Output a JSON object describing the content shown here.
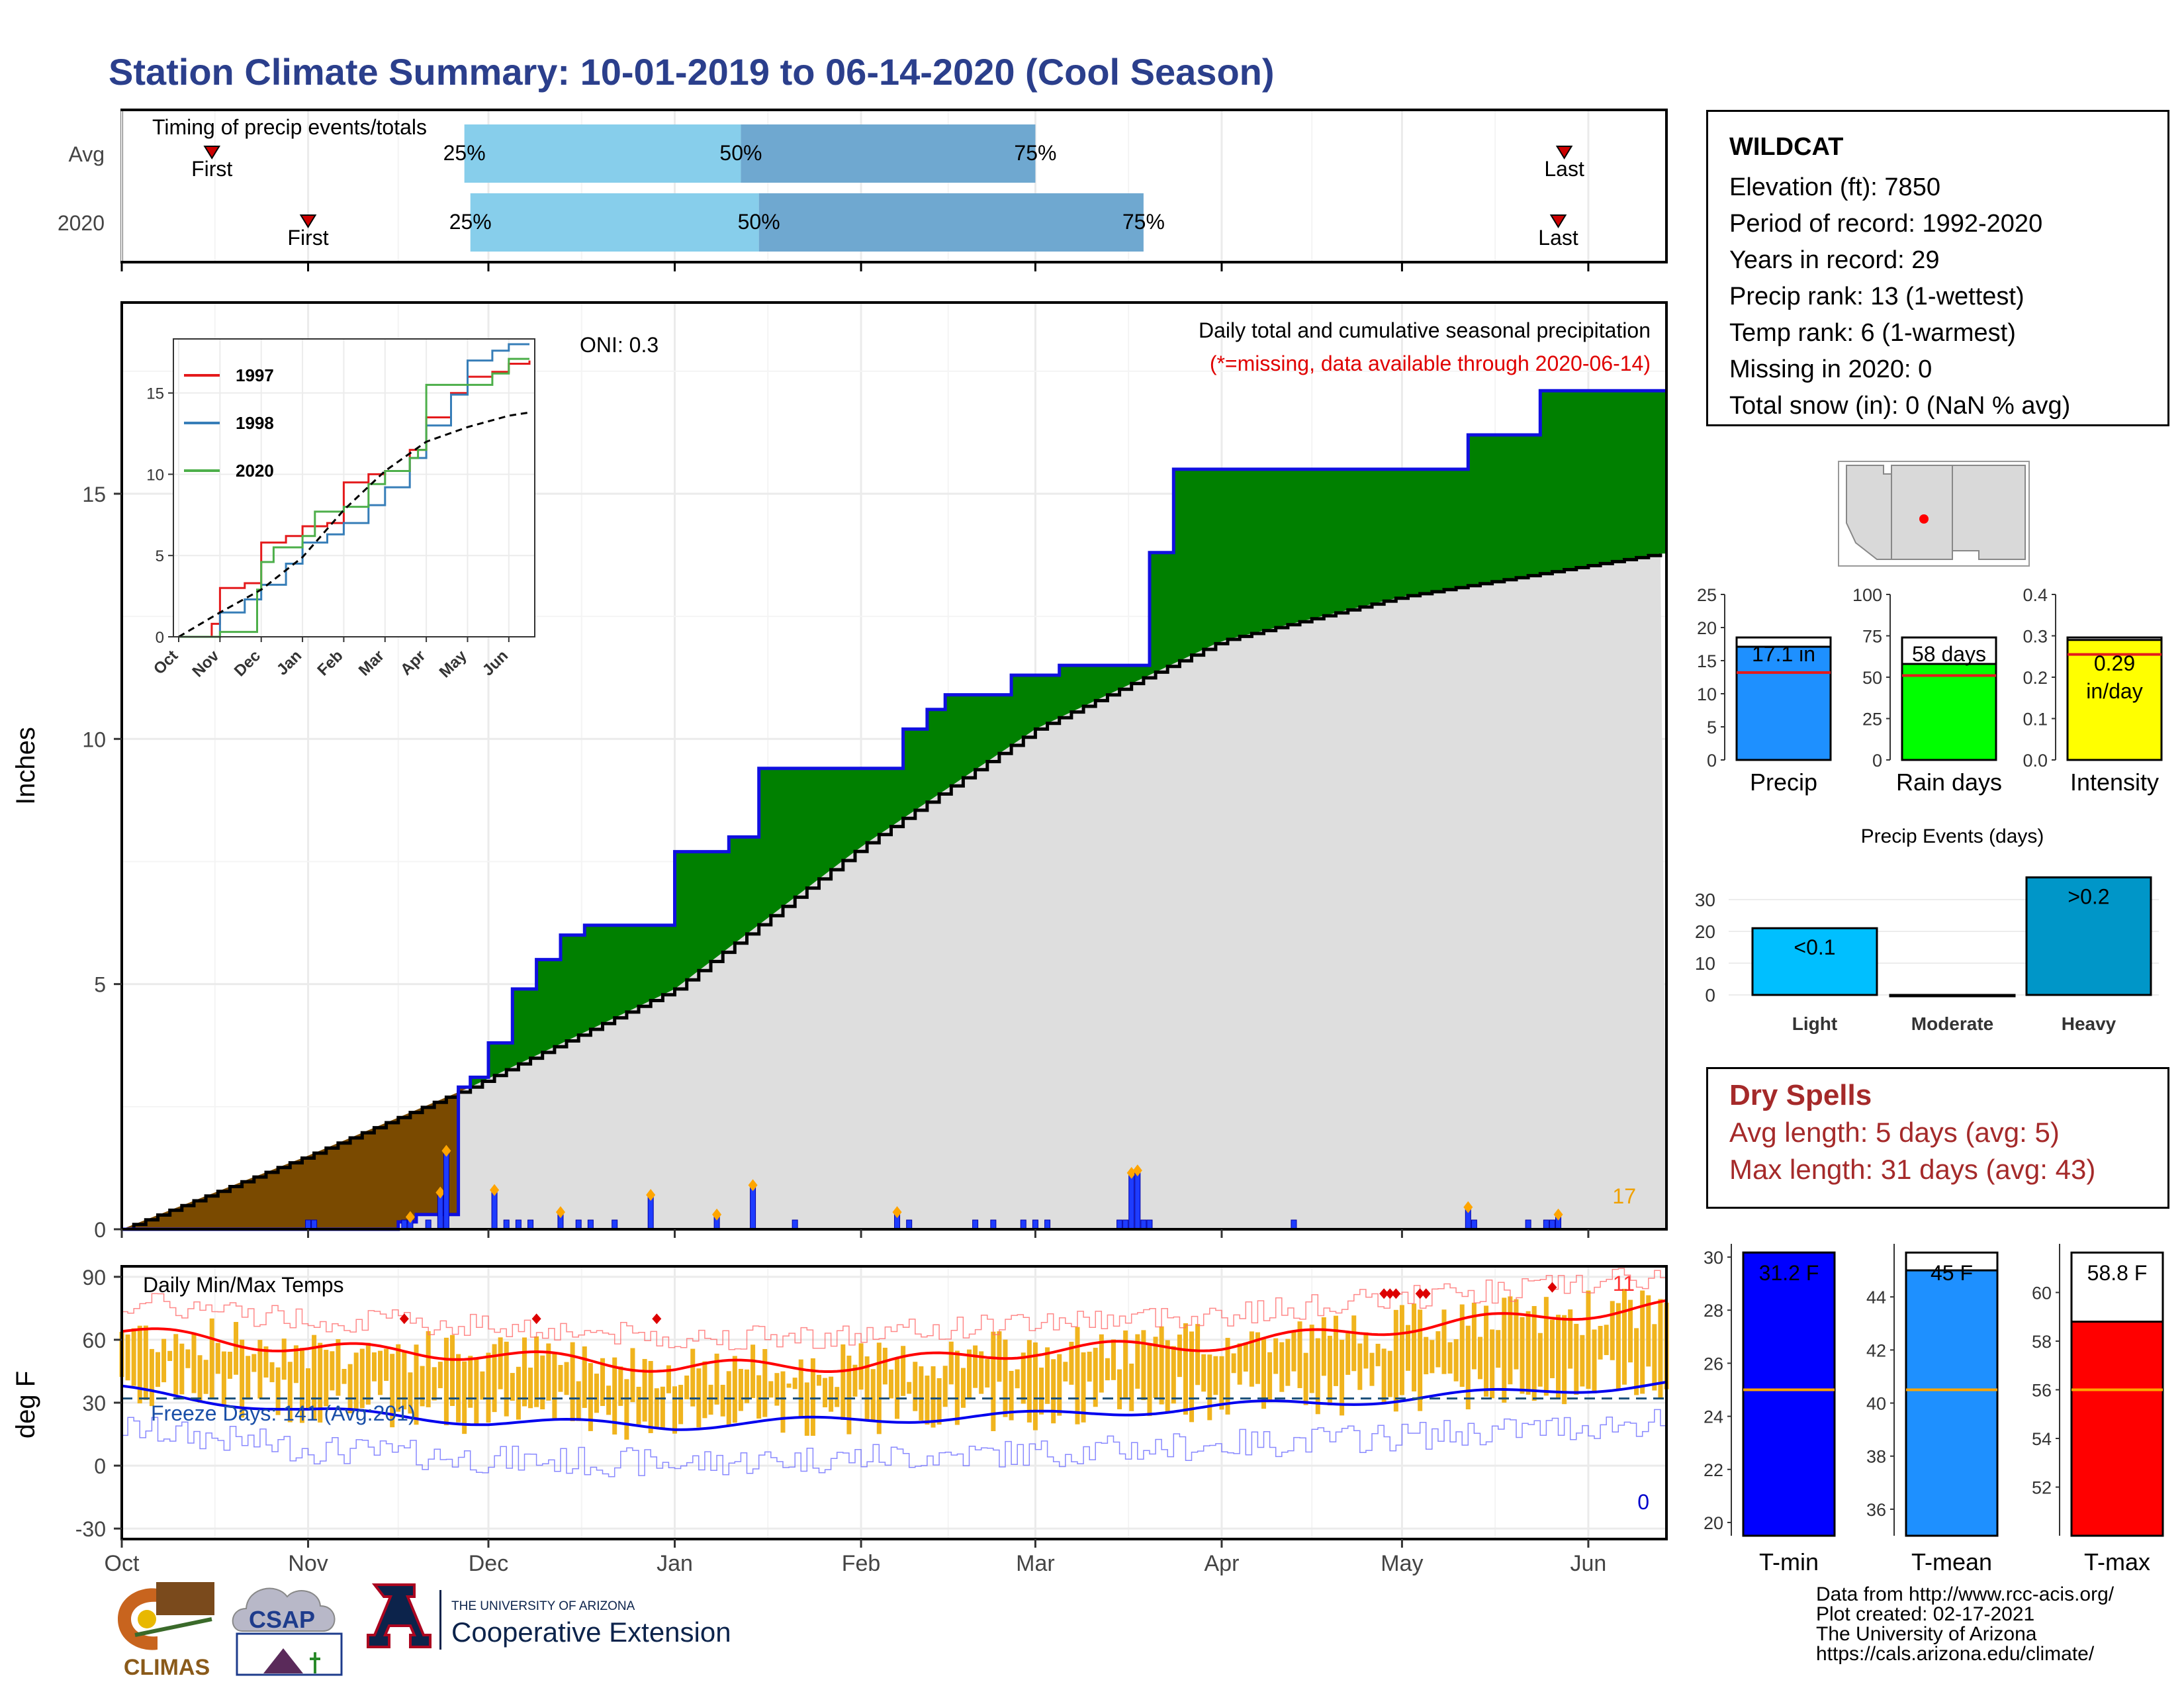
{
  "title": "Station Climate Summary: 10-01-2019 to 06-14-2020 (Cool Season)",
  "timing": {
    "label": "Timing of precip events/totals",
    "rows": [
      {
        "name": "Avg",
        "first": "2019-10-16",
        "q25": "2019-11-27",
        "q50": "2020-01-12",
        "q75": "2020-03-01",
        "last": "2020-05-28"
      },
      {
        "name": "2020",
        "first": "2019-11-01",
        "q25": "2019-11-28",
        "q50": "2020-01-15",
        "q75": "2020-03-19",
        "last": "2020-05-27"
      }
    ],
    "first_label": "First",
    "last_label": "Last",
    "q25_label": "25%",
    "q50_label": "50%",
    "q75_label": "75%"
  },
  "precip_panel": {
    "ylabel": "Inches",
    "header": "Daily total and cumulative seasonal precipitation",
    "missing_note": "(*=missing, data available through 2020-06-14)",
    "oni": "ONI: 0.3",
    "corner_count": "17",
    "yticks": [
      "0",
      "5",
      "10",
      "15"
    ]
  },
  "temp_panel": {
    "ylabel": "deg F",
    "header": "Daily Min/Max Temps",
    "freeze": "Freeze Days: 141 (Avg:201)",
    "corner_hi": "11",
    "corner_lo": "0",
    "yticks": [
      "90",
      "60",
      "30",
      "0",
      "-30"
    ]
  },
  "x_months": [
    "Oct",
    "Nov",
    "Dec",
    "Jan",
    "Feb",
    "Mar",
    "Apr",
    "May",
    "Jun"
  ],
  "inset": {
    "legend": [
      "1997",
      "1998",
      "2020"
    ],
    "yticks": [
      "0",
      "5",
      "10",
      "15"
    ],
    "xticks": [
      "Oct",
      "Nov",
      "Dec",
      "Jan",
      "Feb",
      "Mar",
      "Apr",
      "May",
      "Jun"
    ]
  },
  "station": {
    "name": "WILDCAT",
    "lines": [
      "Elevation (ft): 7850",
      "Period of record: 1992-2020",
      "Years in record: 29",
      "Precip rank: 13 (1-wettest)",
      "Temp rank: 6 (1-warmest)",
      "Missing in 2020: 0",
      "Total snow (in): 0 (NaN % avg)"
    ]
  },
  "summary_bars": [
    {
      "label": "Precip",
      "value_text": "17.1 in",
      "value": 17.1,
      "avg": 13.2,
      "max": 25,
      "ticks": [
        "0",
        "5",
        "10",
        "15",
        "20",
        "25"
      ],
      "color": "#1e90ff"
    },
    {
      "label": "Rain days",
      "value_text": "58 days",
      "value": 58,
      "avg": 51,
      "max": 100,
      "ticks": [
        "0",
        "25",
        "50",
        "75",
        "100"
      ],
      "color": "#00ff00"
    },
    {
      "label": "Intensity",
      "value_text": "0.29 in/day",
      "value": 0.29,
      "avg": 0.255,
      "max": 0.4,
      "ticks": [
        "0.0",
        "0.1",
        "0.2",
        "0.3",
        "0.4"
      ],
      "color": "#ffff00"
    }
  ],
  "events": {
    "title": "Precip Events (days)",
    "yticks": [
      "0",
      "10",
      "20",
      "30"
    ],
    "bars": [
      {
        "label": "Light",
        "value": 21,
        "text": "<0.1",
        "color": "#00bfff"
      },
      {
        "label": "Moderate",
        "value": 0,
        "text": "",
        "color": "#1e90ff"
      },
      {
        "label": "Heavy",
        "value": 37,
        "text": ">0.2",
        "color": "#0096c8"
      }
    ]
  },
  "dry_spells": {
    "title": "Dry Spells",
    "avg": "Avg length: 5 days (avg: 5)",
    "max": "Max length: 31 days (avg: 43)"
  },
  "temp_bars": [
    {
      "label": "T-min",
      "value_text": "31.2 F",
      "value": 31.2,
      "avg": 25,
      "lo": 19.5,
      "hi": 30.5,
      "ticks": [
        20,
        22,
        24,
        26,
        28,
        30
      ],
      "color": "#0000ff"
    },
    {
      "label": "T-mean",
      "value_text": "45 F",
      "value": 45,
      "avg": 40.5,
      "lo": 35,
      "hi": 46,
      "ticks": [
        36,
        38,
        40,
        42,
        44
      ],
      "color": "#1e90ff"
    },
    {
      "label": "T-max",
      "value_text": "58.8 F",
      "value": 58.8,
      "avg": 56,
      "lo": 50,
      "hi": 62,
      "ticks": [
        52,
        54,
        56,
        58,
        60
      ],
      "color": "#ff0000"
    }
  ],
  "credits": [
    "Data from http://www.rcc-acis.org/",
    "Plot created: 02-17-2021",
    "The University of Arizona",
    "https://cals.arizona.edu/climate/"
  ],
  "logos": {
    "climas": "CLIMAS",
    "csap": "CSAP",
    "ua_top": "THE UNIVERSITY OF ARIZONA",
    "ua_bottom": "Cooperative Extension"
  },
  "chart_data": [
    {
      "type": "area",
      "title": "Daily total and cumulative seasonal precipitation",
      "ylabel": "Inches",
      "ylim": [
        0,
        18.9
      ],
      "x_range": [
        "2019-10-01",
        "2020-06-14"
      ],
      "series": [
        {
          "name": "2020",
          "x": [
            "2019-10-01",
            "2019-11-16",
            "2019-11-19",
            "2019-11-26",
            "2019-11-28",
            "2019-12-01",
            "2019-12-05",
            "2019-12-09",
            "2019-12-13",
            "2019-12-17",
            "2020-01-01",
            "2020-01-10",
            "2020-01-15",
            "2020-02-08",
            "2020-02-12",
            "2020-02-15",
            "2020-02-26",
            "2020-03-05",
            "2020-03-17",
            "2020-03-20",
            "2020-03-24",
            "2020-04-01",
            "2020-05-01",
            "2020-05-12",
            "2020-05-24",
            "2020-06-14"
          ],
          "y": [
            0,
            0.15,
            0.3,
            2.9,
            3.1,
            3.8,
            4.9,
            5.5,
            6.0,
            6.2,
            7.7,
            8.0,
            9.4,
            10.2,
            10.6,
            10.9,
            11.3,
            11.5,
            11.5,
            13.8,
            15.5,
            15.5,
            15.5,
            16.2,
            17.1,
            17.1
          ]
        },
        {
          "name": "Avg",
          "x": [
            "2019-10-01",
            "2019-11-01",
            "2019-11-28",
            "2020-01-01",
            "2020-02-01",
            "2020-03-01",
            "2020-04-01",
            "2020-05-01",
            "2020-06-14"
          ],
          "y": [
            0,
            1.5,
            2.9,
            4.9,
            7.8,
            10.2,
            12.0,
            12.9,
            13.8
          ]
        }
      ],
      "daily": {
        "x": [
          "2019-11-18",
          "2019-11-23",
          "2019-11-24",
          "2019-12-02",
          "2019-12-13",
          "2019-12-28",
          "2020-01-08",
          "2020-01-14",
          "2020-02-07",
          "2020-03-17",
          "2020-03-18",
          "2020-05-12",
          "2020-05-27"
        ],
        "y": [
          0.25,
          0.75,
          1.6,
          0.8,
          0.35,
          0.7,
          0.3,
          0.9,
          0.35,
          1.15,
          1.2,
          0.45,
          0.3
        ]
      }
    },
    {
      "type": "line",
      "title": "Daily Min/Max Temps",
      "ylabel": "deg F",
      "ylim": [
        -35,
        95
      ],
      "series": [
        {
          "name": "Tmax smooth",
          "x": [
            "2019-10-01",
            "2019-11-01",
            "2019-12-01",
            "2020-01-01",
            "2020-02-01",
            "2020-03-01",
            "2020-04-01",
            "2020-05-01",
            "2020-06-14"
          ],
          "y": [
            64,
            56,
            53,
            47,
            48,
            55,
            58,
            66,
            76
          ]
        },
        {
          "name": "Tmin smooth",
          "x": [
            "2019-10-01",
            "2019-11-01",
            "2019-12-01",
            "2020-01-01",
            "2020-02-01",
            "2020-03-01",
            "2020-04-01",
            "2020-05-01",
            "2020-06-14"
          ],
          "y": [
            36,
            26,
            21,
            19,
            22,
            24,
            28,
            32,
            39
          ]
        }
      ],
      "freeze_line": 32
    },
    {
      "type": "line",
      "title": "",
      "ylim": [
        0,
        18
      ],
      "xticks": [
        "Oct",
        "Nov",
        "Dec",
        "Jan",
        "Feb",
        "Mar",
        "Apr",
        "May",
        "Jun"
      ],
      "series": [
        {
          "name": "1997",
          "x": [
            0,
            0.8,
            1.0,
            1.6,
            2.0,
            2.6,
            3.0,
            3.6,
            4.0,
            4.6,
            5.0,
            5.6,
            6.0,
            6.6,
            7.0,
            7.6,
            8.0,
            8.5
          ],
          "y": [
            0,
            0.8,
            3.0,
            3.3,
            5.8,
            6.2,
            6.8,
            7.0,
            9.5,
            10.0,
            10.2,
            11.5,
            13.5,
            15.0,
            16.0,
            16.3,
            16.8,
            17.0
          ]
        },
        {
          "name": "1998",
          "x": [
            0,
            1.0,
            1.6,
            2.0,
            2.6,
            3.0,
            3.6,
            4.0,
            4.6,
            5.0,
            5.6,
            6.0,
            6.6,
            7.0,
            7.6,
            8.0,
            8.5
          ],
          "y": [
            0,
            1.5,
            2.3,
            3.2,
            4.5,
            5.8,
            6.3,
            7.0,
            8.1,
            9.2,
            11.0,
            13.0,
            14.9,
            17.0,
            17.6,
            18.0,
            18.0
          ]
        },
        {
          "name": "2020",
          "x": [
            0,
            1.0,
            1.5,
            1.9,
            2.0,
            2.3,
            3.0,
            3.3,
            4.0,
            4.6,
            5.0,
            5.6,
            5.8,
            6.0,
            7.0,
            7.6,
            8.0,
            8.5
          ],
          "y": [
            0,
            0.3,
            0.3,
            2.9,
            4.6,
            5.5,
            6.2,
            7.7,
            8.0,
            9.4,
            10.2,
            11.0,
            11.5,
            15.5,
            15.5,
            16.2,
            17.1,
            17.1
          ]
        },
        {
          "name": "Avg",
          "x": [
            0,
            1,
            2,
            3,
            4,
            5,
            6,
            7,
            8,
            8.5
          ],
          "y": [
            0,
            1.5,
            2.9,
            4.9,
            7.8,
            10.2,
            12.0,
            12.9,
            13.6,
            13.8
          ]
        }
      ]
    },
    {
      "type": "bar",
      "title": "Precip Events (days)",
      "categories": [
        "Light",
        "Moderate",
        "Heavy"
      ],
      "values": [
        21,
        0,
        37
      ],
      "ylim": [
        0,
        40
      ]
    }
  ]
}
